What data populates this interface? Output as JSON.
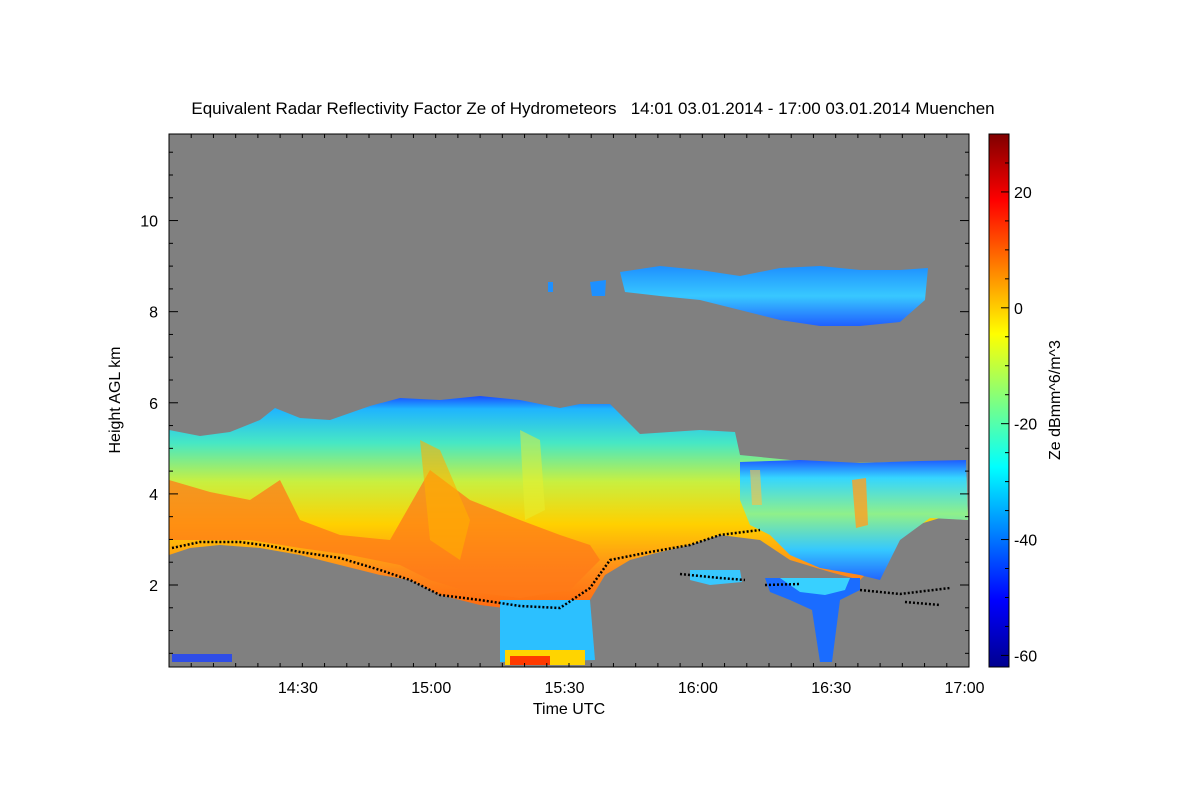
{
  "chart_data": {
    "type": "heatmap",
    "title": "Equivalent Radar Reflectivity Factor Ze of Hydrometeors   14:01 03.01.2014 - 17:00 03.01.2014 Muenchen",
    "xlabel": "Time UTC",
    "ylabel": "Height AGL km",
    "xlim": [
      "14:01",
      "17:01"
    ],
    "ylim": [
      0.2,
      11.9
    ],
    "x_ticks": [
      "14:30",
      "15:00",
      "15:30",
      "16:00",
      "16:30",
      "17:00"
    ],
    "y_ticks": [
      2,
      4,
      6,
      8,
      10
    ],
    "background_color": "#808080",
    "colorbar": {
      "label": "Ze dBmm^6/m^3",
      "range": [
        -62,
        30
      ],
      "ticks": [
        20,
        0,
        -20,
        -40,
        -60
      ],
      "colormap": "jet"
    },
    "echo_regions": [
      {
        "name": "mid-level stratiform cloud",
        "time_start": "14:01",
        "time_end": "17:01",
        "top_km": [
          5.3,
          5.7,
          6.1,
          6.0,
          5.5,
          4.8,
          4.7
        ],
        "base_km": [
          2.5,
          2.2,
          1.7,
          1.4,
          2.6,
          3.0,
          3.4
        ],
        "max_dBZ": 10
      },
      {
        "name": "upper cirrus layer",
        "time_start": "15:40",
        "time_end": "16:59",
        "top_km": 9.1,
        "base_km": 7.8,
        "max_dBZ": -20
      },
      {
        "name": "precipitation shaft to surface",
        "time_start": "15:18",
        "time_end": "15:38",
        "top_km": 1.6,
        "base_km": 0.2,
        "max_dBZ": 10
      },
      {
        "name": "fall streaks",
        "time_start": "16:20",
        "time_end": "16:40",
        "top_km": 2.1,
        "base_km": 0.2,
        "max_dBZ": -35
      }
    ]
  }
}
